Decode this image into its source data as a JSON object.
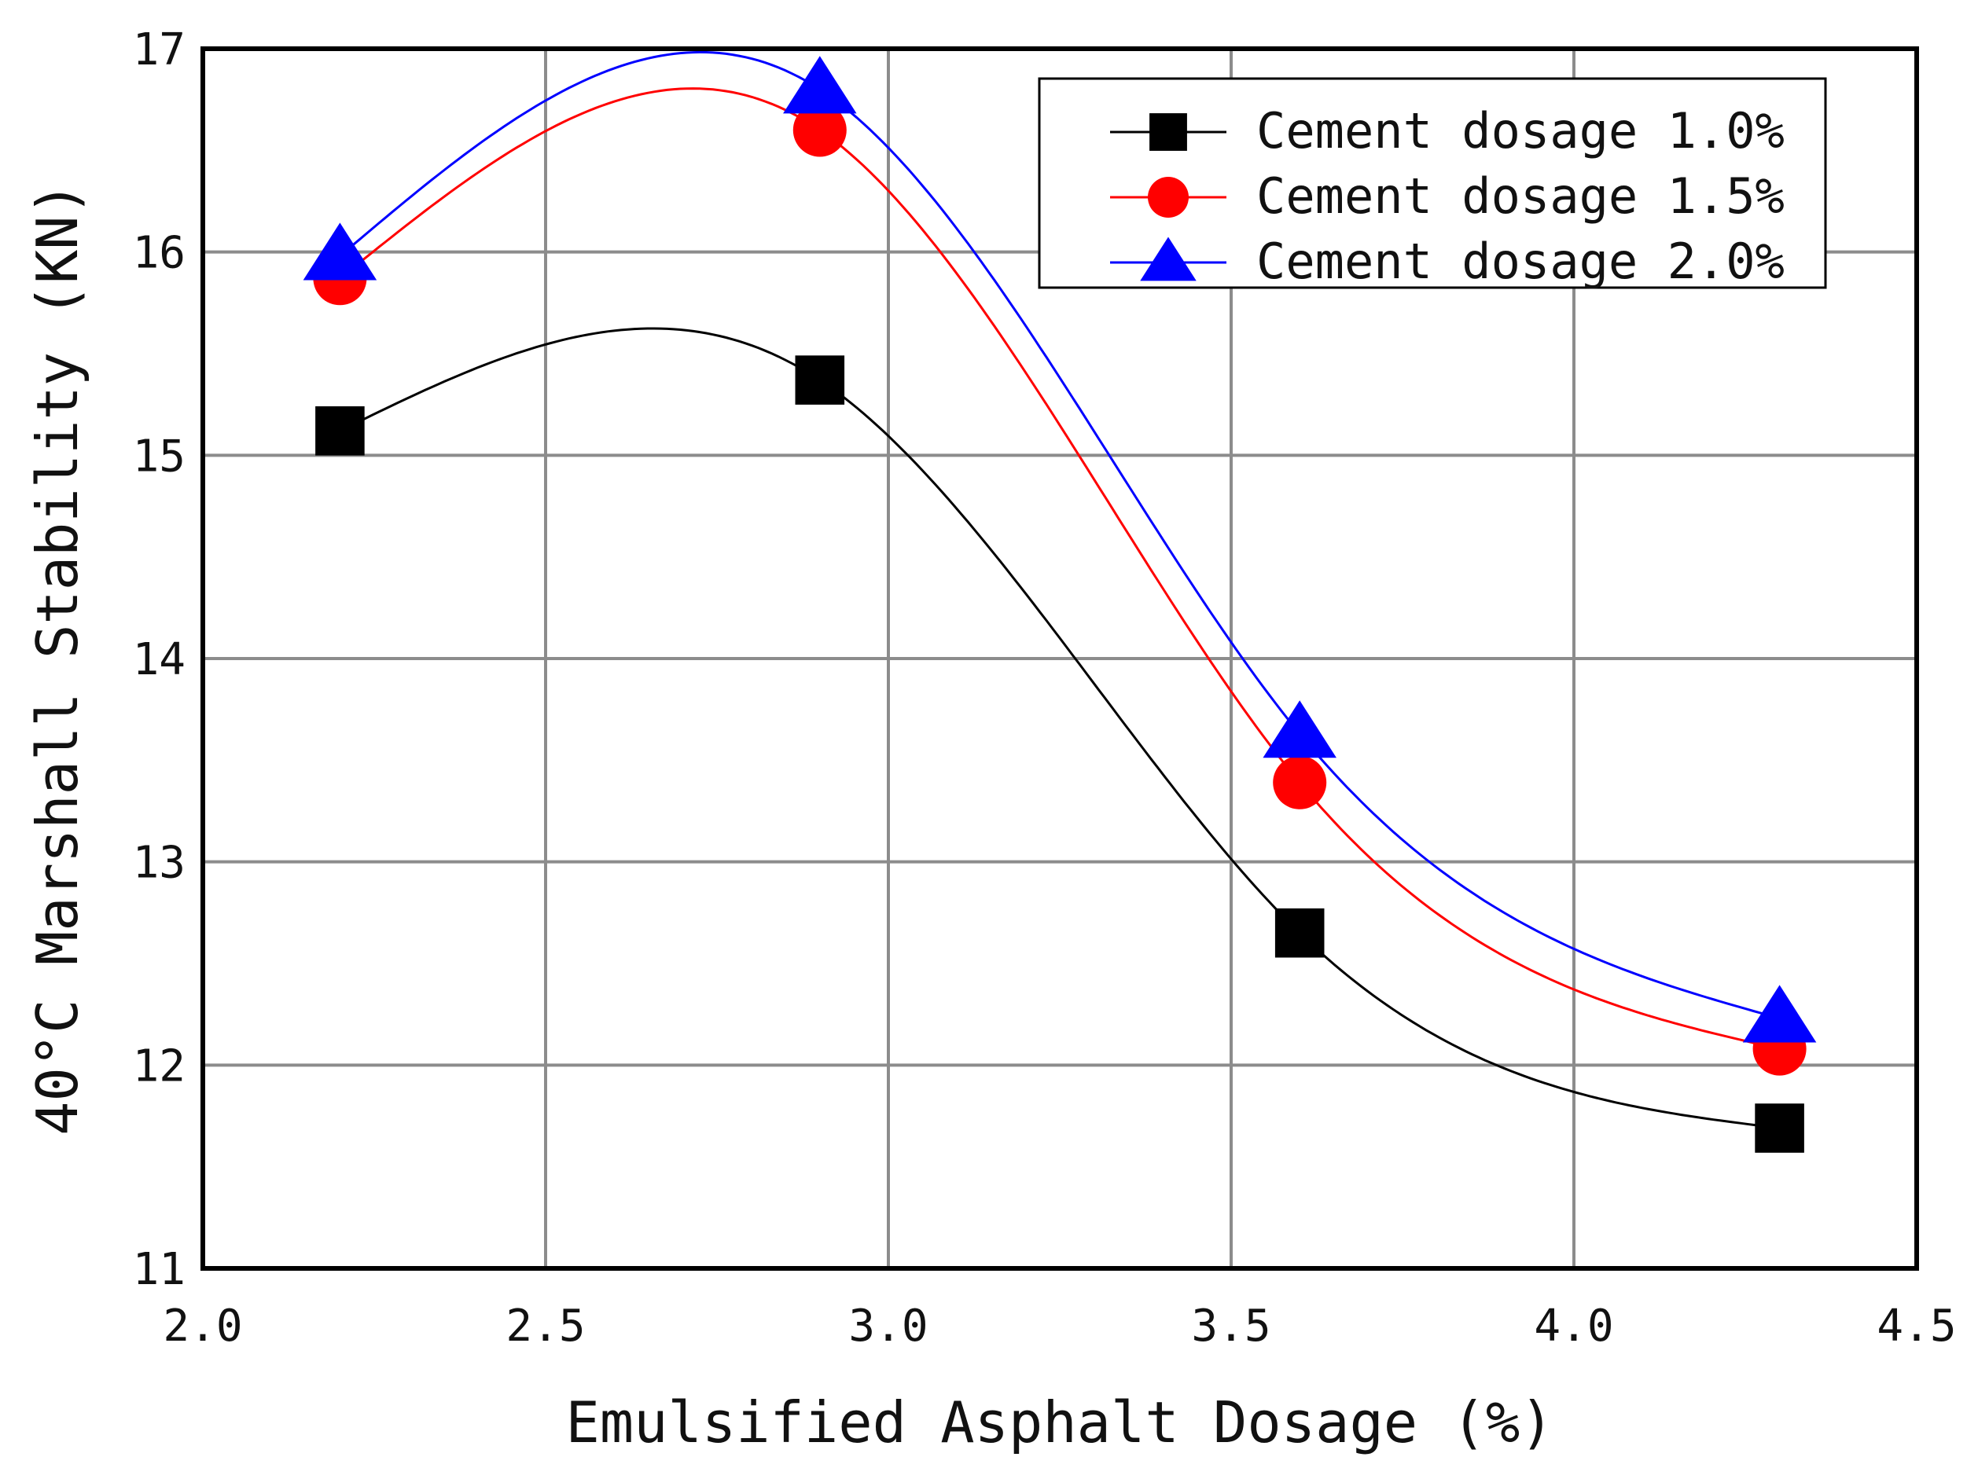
{
  "chart_data": {
    "type": "line",
    "title": "",
    "xlabel": "Emulsified Asphalt Dosage (%)",
    "ylabel": "40°C Marshall Stability (KN)",
    "xlim": [
      2.0,
      4.5
    ],
    "ylim": [
      11,
      17
    ],
    "xticks": [
      "2.0",
      "2.5",
      "3.0",
      "3.5",
      "4.0",
      "4.5"
    ],
    "yticks": [
      "11",
      "12",
      "13",
      "14",
      "15",
      "16",
      "17"
    ],
    "grid": true,
    "legend_position": "top-right",
    "x": [
      2.2,
      2.9,
      3.6,
      4.3
    ],
    "series": [
      {
        "name": "Cement dosage 1.0%",
        "values": [
          15.12,
          15.37,
          12.65,
          11.69
        ],
        "color": "#000000",
        "marker": "square"
      },
      {
        "name": "Cement dosage 1.5%",
        "values": [
          15.87,
          16.6,
          13.39,
          12.08
        ],
        "color": "#ff0000",
        "marker": "circle"
      },
      {
        "name": "Cement dosage 2.0%",
        "values": [
          15.98,
          16.8,
          13.63,
          12.23
        ],
        "color": "#0000ff",
        "marker": "triangle"
      }
    ]
  }
}
